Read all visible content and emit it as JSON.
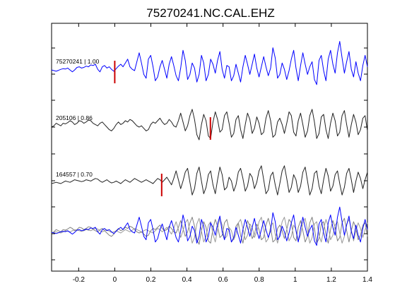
{
  "chart_data": {
    "type": "line",
    "title": "75270241.NC.CAL.EHZ",
    "xlabel": "",
    "ylabel": "",
    "xlim": [
      -0.35,
      1.4
    ],
    "x_ticks": [
      -0.2,
      0,
      0.2,
      0.4,
      0.6,
      0.8,
      1,
      1.2,
      1.4
    ],
    "x_tick_labels": [
      "-0.2",
      "0",
      "0.2",
      "0.4",
      "0.6",
      "0.8",
      "1",
      "1.2",
      "1.4"
    ],
    "grid": false,
    "legend": "none",
    "traces": [
      {
        "label": "75270241 | 1.00",
        "color": "#0000ff",
        "pick_time": 0.0,
        "pick_color": "#cc0000",
        "x_start": -0.35,
        "x_end": 1.4,
        "values": [
          0.05,
          0.0,
          -0.05,
          0.02,
          0.1,
          0.15,
          0.12,
          0.2,
          0.05,
          -0.1,
          0.05,
          0.25,
          0.3,
          0.2,
          0.25,
          0.35,
          0.3,
          0.45,
          0.4,
          0.5,
          0.1,
          -0.1,
          0.3,
          0.4,
          0.2,
          0.3,
          0.1,
          -0.05,
          0.15,
          0.35,
          0.5,
          0.3,
          0.6,
          0.9,
          0.3,
          0.1,
          0.0,
          0.7,
          1.4,
          0.6,
          -0.3,
          -0.6,
          0.9,
          1.2,
          0.3,
          -0.8,
          -0.5,
          0.3,
          0.8,
          0.1,
          -0.6,
          0.5,
          1.1,
          0.4,
          -0.4,
          -0.8,
          0.2,
          1.6,
          0.8,
          -0.7,
          -0.3,
          0.6,
          0.2,
          -0.9,
          -0.3,
          1.2,
          0.6,
          -0.8,
          -0.3,
          0.9,
          0.5,
          -0.2,
          0.8,
          1.5,
          0.1,
          -0.6,
          0.4,
          0.3,
          -0.8,
          -0.4,
          0.5,
          -0.2,
          -0.9,
          0.3,
          1.2,
          0.5,
          -0.3,
          0.5,
          1.3,
          0.2,
          -0.5,
          0.3,
          1.1,
          0.3,
          -0.4,
          0.2,
          1.8,
          1.0,
          -0.6,
          -0.3,
          0.6,
          0.1,
          -0.7,
          0.0,
          0.9,
          1.6,
          0.2,
          -0.8,
          0.4,
          1.4,
          0.5,
          -0.3,
          0.3,
          0.7,
          -0.7,
          -1.1,
          0.8,
          1.2,
          0.0,
          -0.8,
          0.9,
          1.6,
          0.5,
          -0.2,
          1.4,
          2.3,
          1.0,
          -0.2,
          0.7,
          1.5,
          0.1,
          -0.5,
          0.7,
          -0.2,
          -0.8,
          0.4,
          1.2,
          0.3
        ],
        "amplitude_unit": "normalized"
      },
      {
        "label": "205106 | 0.86",
        "color": "#222222",
        "pick_time": 0.53,
        "pick_color": "#cc0000",
        "x_start": -0.35,
        "x_end": 1.4,
        "values": [
          0.0,
          0.1,
          0.3,
          0.2,
          0.1,
          0.3,
          0.25,
          0.35,
          0.5,
          0.4,
          0.2,
          0.3,
          0.5,
          0.45,
          0.3,
          0.4,
          0.55,
          0.5,
          0.3,
          0.2,
          0.1,
          0.3,
          0.4,
          0.2,
          0.0,
          -0.2,
          -0.3,
          -0.1,
          0.2,
          0.4,
          0.2,
          0.3,
          0.5,
          0.4,
          0.6,
          0.5,
          0.3,
          0.1,
          0.0,
          0.1,
          -0.1,
          -0.3,
          -0.2,
          0.2,
          0.4,
          0.3,
          0.5,
          0.7,
          0.4,
          0.2,
          0.3,
          0.6,
          0.4,
          0.1,
          0.0,
          0.5,
          1.1,
          0.4,
          -0.3,
          0.1,
          0.9,
          1.4,
          0.6,
          -0.6,
          -1.0,
          0.2,
          1.0,
          0.5,
          -0.7,
          -0.9,
          0.4,
          1.2,
          0.6,
          -0.4,
          -0.2,
          0.9,
          1.2,
          0.3,
          -0.8,
          -0.5,
          0.6,
          0.9,
          -0.2,
          -0.9,
          0.2,
          1.1,
          0.6,
          -0.5,
          -0.1,
          0.8,
          0.3,
          -0.6,
          -0.4,
          0.7,
          1.3,
          0.5,
          -0.8,
          -0.6,
          0.4,
          0.7,
          0.2,
          -0.5,
          0.3,
          1.2,
          0.9,
          -0.4,
          -0.7,
          0.5,
          1.1,
          0.2,
          -0.8,
          -0.3,
          0.9,
          1.4,
          0.4,
          -0.9,
          -0.5,
          0.8,
          1.0,
          -0.2,
          -0.9,
          0.3,
          1.1,
          0.5,
          -0.7,
          -0.4,
          0.9,
          1.3,
          0.2,
          -0.8,
          0.2,
          1.0,
          0.4,
          -0.6,
          -0.2,
          0.7,
          0.9,
          -0.3
        ],
        "amplitude_unit": "normalized"
      },
      {
        "label": "164557 | 0.70",
        "color": "#222222",
        "pick_time": 0.26,
        "pick_color": "#cc0000",
        "x_start": -0.35,
        "x_end": 1.4,
        "values": [
          0.0,
          0.05,
          0.1,
          0.05,
          0.0,
          0.1,
          0.2,
          0.15,
          0.1,
          0.2,
          0.3,
          0.25,
          0.2,
          0.15,
          0.2,
          0.3,
          0.25,
          0.2,
          0.3,
          0.4,
          0.35,
          0.2,
          0.1,
          0.2,
          0.3,
          0.15,
          0.05,
          0.1,
          0.2,
          0.1,
          0.0,
          0.15,
          0.3,
          0.2,
          0.1,
          0.25,
          0.4,
          0.3,
          0.2,
          0.1,
          0.2,
          0.3,
          0.2,
          0.1,
          0.0,
          0.2,
          0.4,
          0.3,
          0.1,
          0.3,
          0.5,
          0.2,
          -0.1,
          0.4,
          1.0,
          0.3,
          -0.4,
          0.2,
          0.9,
          1.2,
          0.1,
          -0.9,
          -0.4,
          0.8,
          1.3,
          0.2,
          -0.8,
          -0.3,
          0.7,
          1.0,
          -0.1,
          -0.8,
          0.3,
          1.3,
          0.7,
          -0.5,
          -0.3,
          0.5,
          0.2,
          -0.6,
          -0.1,
          0.9,
          1.2,
          0.4,
          -0.6,
          -0.2,
          0.8,
          0.5,
          -0.4,
          0.1,
          1.0,
          1.4,
          0.3,
          -0.8,
          -0.5,
          0.6,
          0.9,
          -0.1,
          -0.9,
          0.0,
          1.0,
          1.4,
          0.4,
          -0.7,
          -0.3,
          0.7,
          0.3,
          -0.7,
          -0.2,
          0.9,
          1.3,
          0.2,
          -0.9,
          -0.4,
          0.8,
          1.0,
          -0.2,
          -0.8,
          0.3,
          1.2,
          0.6,
          -0.6,
          -0.2,
          0.7,
          1.0,
          0.0,
          -0.9,
          -0.3,
          0.8,
          1.2,
          0.3,
          -0.7,
          0.2,
          0.9,
          0.4,
          -0.4,
          0.3,
          0.9
        ],
        "amplitude_unit": "normalized"
      }
    ],
    "overlay_note_shown": false
  }
}
